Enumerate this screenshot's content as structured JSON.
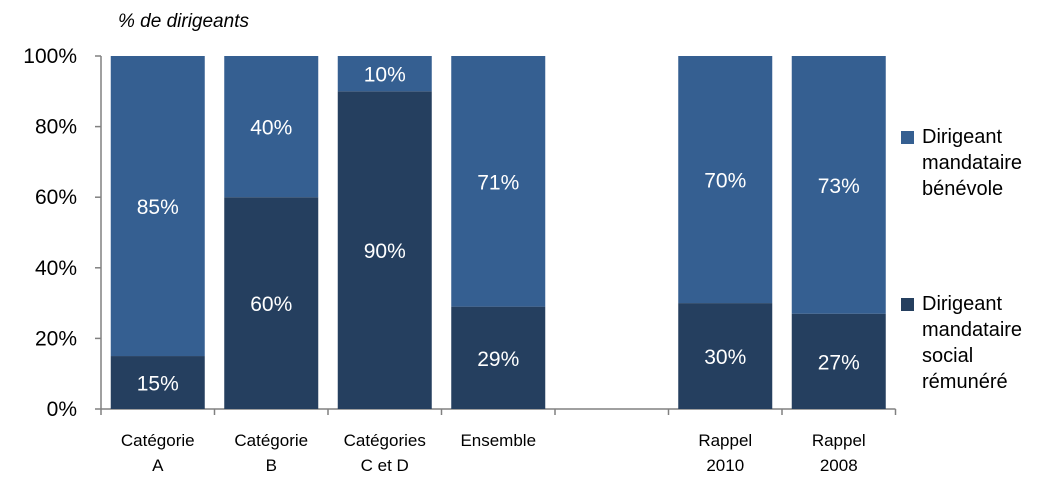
{
  "chart_data": {
    "type": "bar",
    "stacked": true,
    "unit_label": "% de dirigeants",
    "y_ticks": [
      "0%",
      "20%",
      "40%",
      "60%",
      "80%",
      "100%"
    ],
    "ylim": [
      0,
      100
    ],
    "categories": [
      [
        "Catégorie",
        "A"
      ],
      [
        "Catégorie",
        "B"
      ],
      [
        "Catégories",
        "C et D"
      ],
      [
        "Ensemble"
      ],
      [],
      [
        "Rappel",
        "2010"
      ],
      [
        "Rappel",
        "2008"
      ]
    ],
    "series": [
      {
        "name": [
          "Dirigeant",
          "mandataire",
          "social",
          "rémunéré"
        ],
        "color": "#253f5f",
        "values": [
          15,
          60,
          90,
          29,
          null,
          30,
          27
        ],
        "labels": [
          "15%",
          "60%",
          "90%",
          "29%",
          "",
          "30%",
          "27%"
        ]
      },
      {
        "name": [
          "Dirigeant",
          "mandataire",
          "bénévole"
        ],
        "color": "#355f91",
        "values": [
          85,
          40,
          10,
          71,
          null,
          70,
          73
        ],
        "labels": [
          "85%",
          "40%",
          "10%",
          "71%",
          "",
          "70%",
          "73%"
        ]
      }
    ],
    "legend_position": "right",
    "grid": false
  }
}
